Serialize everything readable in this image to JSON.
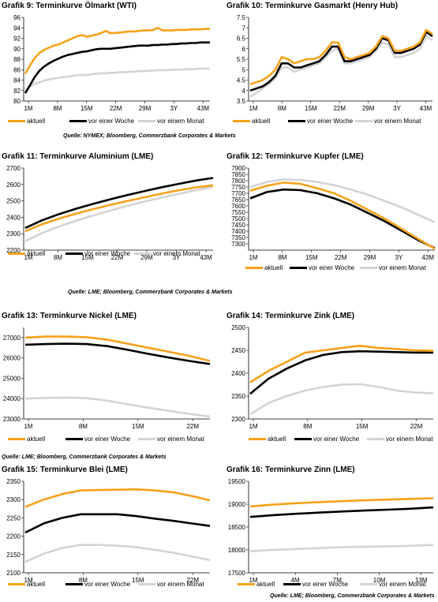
{
  "colors": {
    "aktuell": "#f7a11a",
    "week": "#000000",
    "month": "#d3d3d3",
    "axis": "#000000",
    "grid": "#e0e0e0"
  },
  "legend_labels": [
    "aktuell",
    "vor einer Woche",
    "vor einem Monat"
  ],
  "sources": {
    "s1": "Quelle: NYMEX; Bloomberg, Commerzbank Corporates & Markets",
    "s2": "Quelle: LME; Bloomberg, Commerzbank Corporates & Markets",
    "s3": "Quelle: LME; Bloomberg, Commerzbank Corporates & Markets",
    "s4": "Quelle: LME; Bloomberg, Commerzbank Corporates & Markets"
  },
  "chart_data": [
    {
      "id": "c9",
      "type": "line",
      "title_prefix": "Grafik 9:",
      "title": "Terminkurve Ölmarkt (WTI)",
      "x_labels": [
        "1M",
        "8M",
        "15M",
        "22M",
        "29M",
        "3Y",
        "43M"
      ],
      "ylim": [
        80,
        96
      ],
      "y_ticks": [
        80,
        82,
        84,
        86,
        88,
        90,
        92,
        94,
        96
      ],
      "series": [
        {
          "name": "aktuell",
          "values": [
            85.2,
            86.8,
            88.2,
            89.2,
            89.8,
            90.2,
            90.6,
            90.8,
            91.2,
            91.6,
            92.0,
            92.4,
            92.6,
            92.3,
            92.5,
            92.7,
            93.0,
            93.4,
            93.0,
            93.0,
            93.1,
            93.2,
            93.3,
            93.3,
            93.4,
            93.5,
            93.5,
            93.6,
            94.0,
            93.5,
            93.5,
            93.5,
            93.6,
            93.6,
            93.6,
            93.7,
            93.7,
            93.7,
            93.8,
            93.8
          ]
        },
        {
          "name": "vor einer Woche",
          "values": [
            81.5,
            83.0,
            84.6,
            85.8,
            86.6,
            87.2,
            87.7,
            88.1,
            88.5,
            88.8,
            89.0,
            89.2,
            89.4,
            89.5,
            89.7,
            89.9,
            90.0,
            90.0,
            90.0,
            90.1,
            90.2,
            90.3,
            90.4,
            90.5,
            90.6,
            90.6,
            90.6,
            90.7,
            90.7,
            90.8,
            90.8,
            90.9,
            90.9,
            91.0,
            91.0,
            91.1,
            91.1,
            91.2,
            91.2,
            91.2
          ]
        },
        {
          "name": "vor einem Monat",
          "values": [
            81.9,
            82.8,
            83.3,
            83.6,
            83.9,
            84.1,
            84.3,
            84.4,
            84.6,
            84.7,
            84.8,
            84.9,
            85.0,
            85.0,
            85.1,
            85.2,
            85.3,
            85.3,
            85.4,
            85.4,
            85.5,
            85.5,
            85.6,
            85.6,
            85.7,
            85.7,
            85.8,
            85.8,
            85.9,
            85.9,
            85.9,
            86.0,
            86.0,
            86.0,
            86.1,
            86.1,
            86.1,
            86.2,
            86.2,
            86.2
          ]
        }
      ]
    },
    {
      "id": "c10",
      "type": "line",
      "title_prefix": "Grafik 10:",
      "title": "Terminkurve Gasmarkt (Henry Hub)",
      "x_labels": [
        "1M",
        "8M",
        "15M",
        "22M",
        "29M",
        "3Y",
        "43M"
      ],
      "ylim": [
        3.5,
        7.5
      ],
      "y_ticks": [
        3.5,
        4.0,
        4.5,
        5.0,
        5.5,
        6.0,
        6.5,
        7.0,
        7.5
      ],
      "series": [
        {
          "name": "aktuell",
          "values": [
            4.3,
            4.4,
            4.5,
            4.7,
            5.0,
            5.6,
            5.5,
            5.3,
            5.4,
            5.5,
            5.5,
            5.6,
            5.9,
            6.3,
            6.3,
            5.6,
            5.5,
            5.6,
            5.7,
            5.8,
            6.1,
            6.6,
            6.5,
            5.9,
            5.9,
            6.0,
            6.1,
            6.3,
            6.9,
            6.7
          ]
        },
        {
          "name": "vor einer Woche",
          "values": [
            4.0,
            4.1,
            4.2,
            4.4,
            4.7,
            5.3,
            5.3,
            5.1,
            5.1,
            5.2,
            5.3,
            5.4,
            5.7,
            6.1,
            6.1,
            5.4,
            5.4,
            5.5,
            5.6,
            5.7,
            6.0,
            6.5,
            6.4,
            5.8,
            5.8,
            5.9,
            6.0,
            6.2,
            6.8,
            6.6
          ]
        },
        {
          "name": "vor einem Monat",
          "values": [
            3.7,
            3.9,
            4.1,
            4.3,
            4.6,
            5.1,
            5.1,
            4.9,
            5.0,
            5.1,
            5.2,
            5.3,
            5.6,
            5.9,
            6.0,
            5.3,
            5.3,
            5.4,
            5.5,
            5.6,
            5.9,
            6.3,
            6.2,
            5.6,
            5.6,
            5.7,
            5.8,
            6.0,
            6.6,
            6.4
          ]
        }
      ]
    },
    {
      "id": "c11",
      "type": "line",
      "title_prefix": "Grafik 11:",
      "title": "Terminkurve Aluminium (LME)",
      "x_labels": [
        "1M",
        "8M",
        "15M",
        "22M",
        "29M",
        "3Y",
        "43M"
      ],
      "ylim": [
        2200,
        2700
      ],
      "y_ticks": [
        2200,
        2300,
        2400,
        2500,
        2600,
        2700
      ],
      "series": [
        {
          "name": "aktuell",
          "values": [
            2315,
            2358,
            2393,
            2423,
            2450,
            2476,
            2500,
            2522,
            2544,
            2565,
            2582,
            2595
          ]
        },
        {
          "name": "vor einer Woche",
          "values": [
            2335,
            2382,
            2420,
            2453,
            2482,
            2510,
            2536,
            2560,
            2583,
            2604,
            2624,
            2640
          ]
        },
        {
          "name": "vor einem Monat",
          "values": [
            2255,
            2305,
            2345,
            2380,
            2412,
            2442,
            2470,
            2496,
            2520,
            2543,
            2565,
            2585
          ]
        }
      ]
    },
    {
      "id": "c12",
      "type": "line",
      "title_prefix": "Grafik 12:",
      "title": "Terminkurve Kupfer (LME)",
      "x_labels": [
        "1M",
        "8M",
        "15M",
        "22M",
        "29M",
        "3Y",
        "43M"
      ],
      "ylim": [
        7250,
        7900
      ],
      "y_ticks": [
        7300,
        7350,
        7400,
        7450,
        7500,
        7550,
        7600,
        7650,
        7700,
        7750,
        7800,
        7850,
        7900
      ],
      "series": [
        {
          "name": "aktuell",
          "values": [
            7720,
            7760,
            7785,
            7775,
            7740,
            7700,
            7640,
            7570,
            7500,
            7420,
            7340,
            7260
          ]
        },
        {
          "name": "vor einer Woche",
          "values": [
            7660,
            7710,
            7730,
            7725,
            7700,
            7660,
            7610,
            7545,
            7480,
            7405,
            7330,
            7265
          ]
        },
        {
          "name": "vor einem Monat",
          "values": [
            7750,
            7790,
            7810,
            7805,
            7790,
            7765,
            7730,
            7690,
            7640,
            7590,
            7530,
            7470
          ]
        }
      ]
    },
    {
      "id": "c13",
      "type": "line",
      "title_prefix": "Grafik 13:",
      "title": "Terminkurve Nickel (LME)",
      "x_labels": [
        "1M",
        "8M",
        "15M",
        "22M"
      ],
      "ylim": [
        23000,
        27500
      ],
      "y_ticks": [
        23000,
        24000,
        25000,
        26000,
        27000
      ],
      "series": [
        {
          "name": "aktuell",
          "values": [
            27000,
            27050,
            27050,
            27020,
            26900,
            26700,
            26500,
            26300,
            26100,
            25850
          ]
        },
        {
          "name": "vor einer Woche",
          "values": [
            26650,
            26680,
            26700,
            26680,
            26580,
            26400,
            26200,
            26020,
            25850,
            25700
          ]
        },
        {
          "name": "vor einem Monat",
          "values": [
            24000,
            24030,
            24050,
            24020,
            23900,
            23720,
            23550,
            23400,
            23250,
            23120
          ]
        }
      ]
    },
    {
      "id": "c14",
      "type": "line",
      "title_prefix": "Grafik 14:",
      "title": "Terminkurve Zink (LME)",
      "x_labels": [
        "1M",
        "8M",
        "15M",
        "22M"
      ],
      "ylim": [
        2300,
        2500
      ],
      "y_ticks": [
        2300,
        2350,
        2400,
        2450,
        2500
      ],
      "series": [
        {
          "name": "aktuell",
          "values": [
            2380,
            2405,
            2425,
            2445,
            2450,
            2455,
            2460,
            2455,
            2453,
            2450,
            2449
          ]
        },
        {
          "name": "vor einer Woche",
          "values": [
            2355,
            2388,
            2410,
            2428,
            2440,
            2446,
            2448,
            2447,
            2446,
            2445,
            2445
          ]
        },
        {
          "name": "vor einem Monat",
          "values": [
            2310,
            2335,
            2350,
            2362,
            2370,
            2375,
            2376,
            2370,
            2362,
            2358,
            2356
          ]
        }
      ]
    },
    {
      "id": "c15",
      "type": "line",
      "title_prefix": "Grafik 15:",
      "title": "Terminkurve Blei (LME)",
      "x_labels": [
        "1M",
        "8M",
        "15M",
        "22M"
      ],
      "ylim": [
        2100,
        2350
      ],
      "y_ticks": [
        2100,
        2150,
        2200,
        2250,
        2300,
        2350
      ],
      "series": [
        {
          "name": "aktuell",
          "values": [
            2280,
            2300,
            2315,
            2325,
            2326,
            2327,
            2328,
            2325,
            2320,
            2310,
            2298
          ]
        },
        {
          "name": "vor einer Woche",
          "values": [
            2210,
            2235,
            2250,
            2260,
            2260,
            2260,
            2255,
            2248,
            2242,
            2235,
            2228
          ]
        },
        {
          "name": "vor einem Monat",
          "values": [
            2130,
            2152,
            2168,
            2176,
            2176,
            2174,
            2170,
            2163,
            2155,
            2145,
            2135
          ]
        }
      ]
    },
    {
      "id": "c16",
      "type": "line",
      "title_prefix": "Grafik 16:",
      "title": "Terminkurve Zinn (LME)",
      "x_labels": [
        "1M",
        "4M",
        "7M",
        "10M",
        "13M"
      ],
      "ylim": [
        17500,
        19500
      ],
      "y_ticks": [
        17500,
        18000,
        18500,
        19000,
        19500
      ],
      "series": [
        {
          "name": "aktuell",
          "values": [
            18950,
            18990,
            19020,
            19045,
            19065,
            19085,
            19100,
            19115,
            19130
          ]
        },
        {
          "name": "vor einer Woche",
          "values": [
            18720,
            18760,
            18790,
            18815,
            18840,
            18860,
            18880,
            18900,
            18930
          ]
        },
        {
          "name": "vor einem Monat",
          "values": [
            17970,
            18000,
            18020,
            18040,
            18060,
            18070,
            18080,
            18090,
            18110
          ]
        }
      ]
    }
  ]
}
